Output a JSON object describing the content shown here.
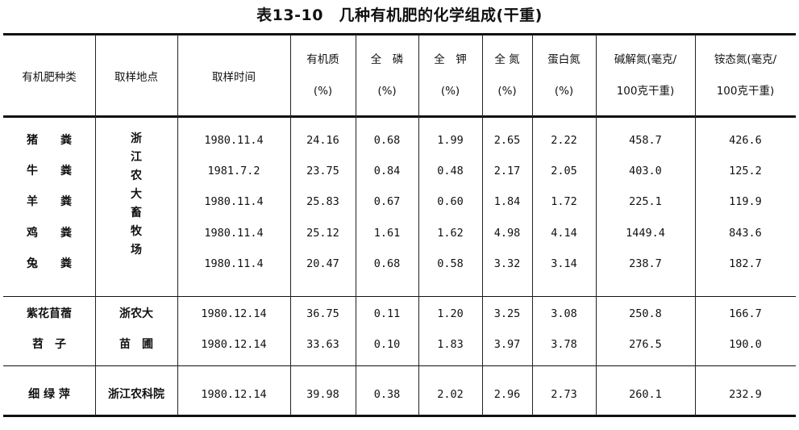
{
  "title": "表13-10　几种有机肥的化学组成(干重)",
  "headers": [
    [
      "有机肥种类",
      ""
    ],
    [
      "取样地点",
      ""
    ],
    [
      "取样时间",
      ""
    ],
    [
      "有机质",
      "(%)"
    ],
    [
      "全　磷",
      "(%)"
    ],
    [
      "全　钾",
      "(%)"
    ],
    [
      "全 氮",
      "(%)"
    ],
    [
      "蛋白氮",
      "(%)"
    ],
    [
      "碱解氮(毫克/",
      "100克干重)"
    ],
    [
      "铵态氮(毫克/",
      "100克干重)"
    ]
  ],
  "group1": {
    "location": "浙江农大畜牧场",
    "rows": [
      {
        "kind": "猪　　粪",
        "time": "1980.11.4",
        "om": "24.16",
        "p": "0.68",
        "k": "1.99",
        "n": "2.65",
        "pn": "2.22",
        "an": "458.7",
        "amn": "426.6"
      },
      {
        "kind": "牛　　粪",
        "time": "1981.7.2",
        "om": "23.75",
        "p": "0.84",
        "k": "0.48",
        "n": "2.17",
        "pn": "2.05",
        "an": "403.0",
        "amn": "125.2"
      },
      {
        "kind": "羊　　粪",
        "time": "1980.11.4",
        "om": "25.83",
        "p": "0.67",
        "k": "0.60",
        "n": "1.84",
        "pn": "1.72",
        "an": "225.1",
        "amn": "119.9"
      },
      {
        "kind": "鸡　　粪",
        "time": "1980.11.4",
        "om": "25.12",
        "p": "1.61",
        "k": "1.62",
        "n": "4.98",
        "pn": "4.14",
        "an": "1449.4",
        "amn": "843.6"
      },
      {
        "kind": "兔　　粪",
        "time": "1980.11.4",
        "om": "20.47",
        "p": "0.68",
        "k": "0.58",
        "n": "3.32",
        "pn": "3.14",
        "an": "238.7",
        "amn": "182.7"
      }
    ]
  },
  "group2": {
    "rows": [
      {
        "kind": "紫花苜蓿",
        "loc": "浙农大",
        "time": "1980.12.14",
        "om": "36.75",
        "p": "0.11",
        "k": "1.20",
        "n": "3.25",
        "pn": "3.08",
        "an": "250.8",
        "amn": "166.7"
      },
      {
        "kind": "苕　子",
        "loc": "苗　圃",
        "time": "1980.12.14",
        "om": "33.63",
        "p": "0.10",
        "k": "1.83",
        "n": "3.97",
        "pn": "3.78",
        "an": "276.5",
        "amn": "190.0"
      }
    ]
  },
  "group3": {
    "rows": [
      {
        "kind": "细 绿 萍",
        "loc": "浙江农科院",
        "time": "1980.12.14",
        "om": "39.98",
        "p": "0.38",
        "k": "2.02",
        "n": "2.96",
        "pn": "2.73",
        "an": "260.1",
        "amn": "232.9"
      }
    ]
  }
}
